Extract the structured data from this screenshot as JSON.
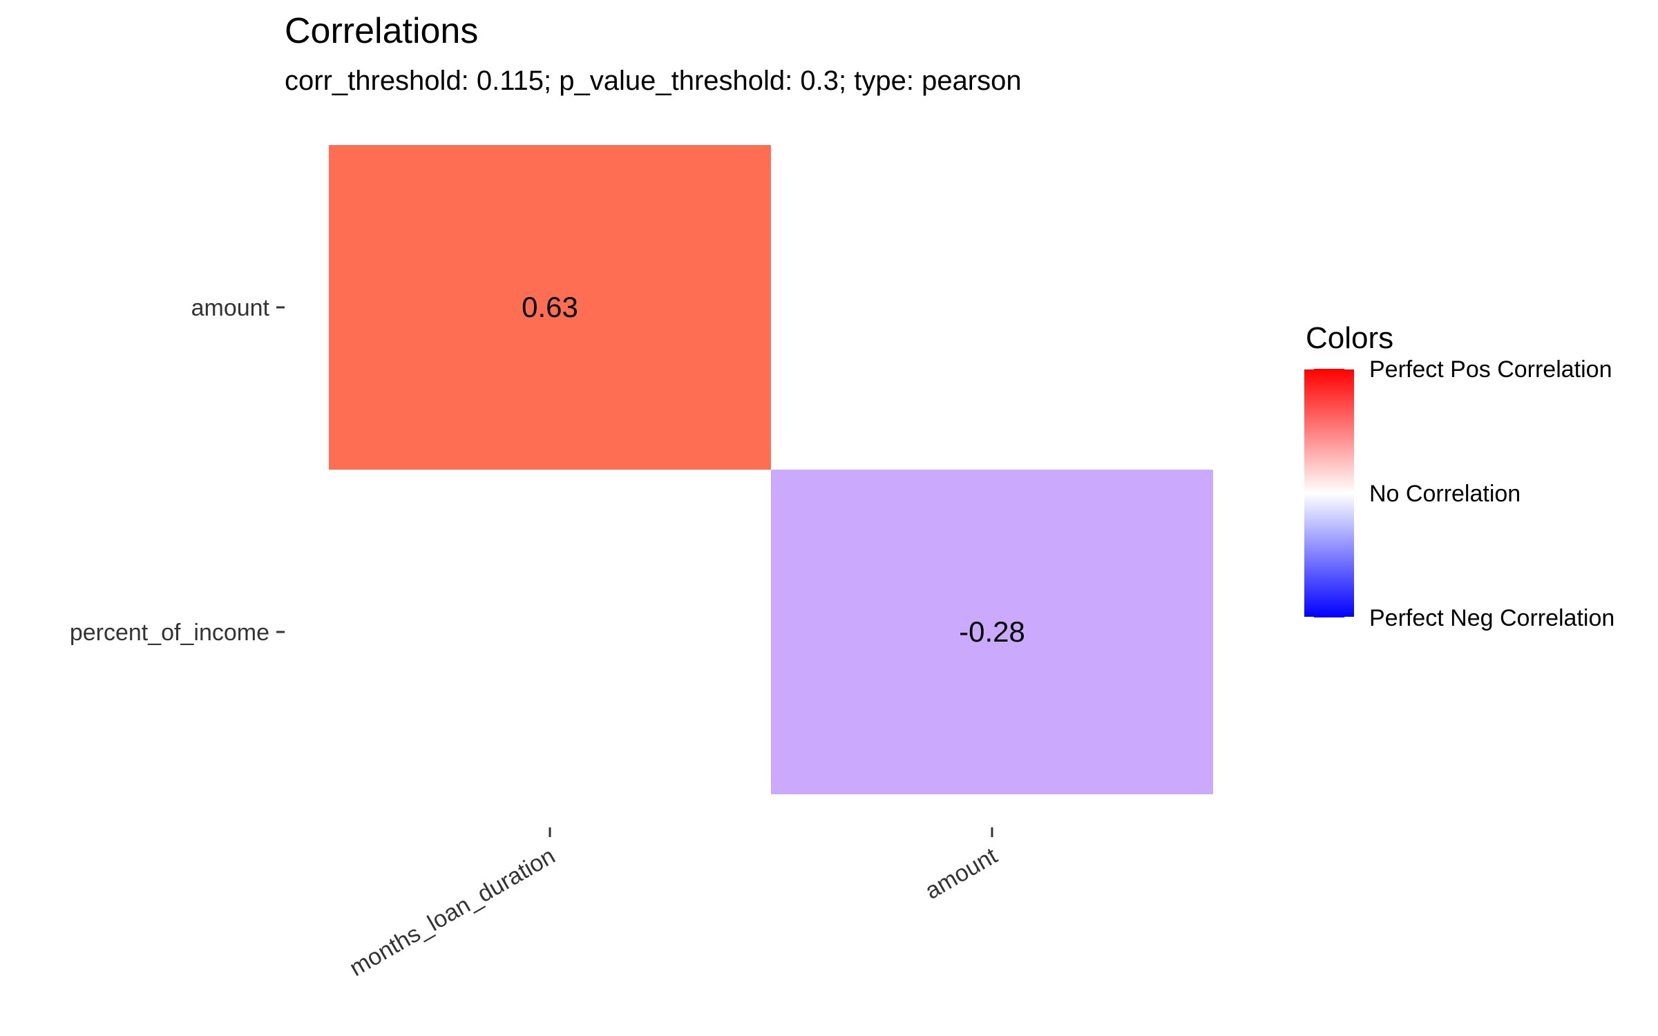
{
  "chart_data": {
    "type": "heatmap",
    "title": "Correlations",
    "subtitle": "corr_threshold: 0.115; p_value_threshold: 0.3; type: pearson",
    "x_categories": [
      "months_loan_duration",
      "amount"
    ],
    "y_categories": [
      "amount",
      "percent_of_income"
    ],
    "cells": [
      {
        "x": "months_loan_duration",
        "y": "amount",
        "value": 0.63,
        "label": "0.63",
        "color": "#fd6e52"
      },
      {
        "x": "amount",
        "y": "percent_of_income",
        "value": -0.28,
        "label": "-0.28",
        "color": "#cbaafd"
      }
    ],
    "legend": {
      "title": "Colors",
      "labels": [
        "Perfect Pos Correlation",
        "No Correlation",
        "Perfect Neg Correlation"
      ],
      "range": [
        1,
        -1
      ],
      "colors": {
        "high": "#ff0000",
        "mid": "#ffffff",
        "low": "#0000ff"
      }
    },
    "grid": false
  }
}
